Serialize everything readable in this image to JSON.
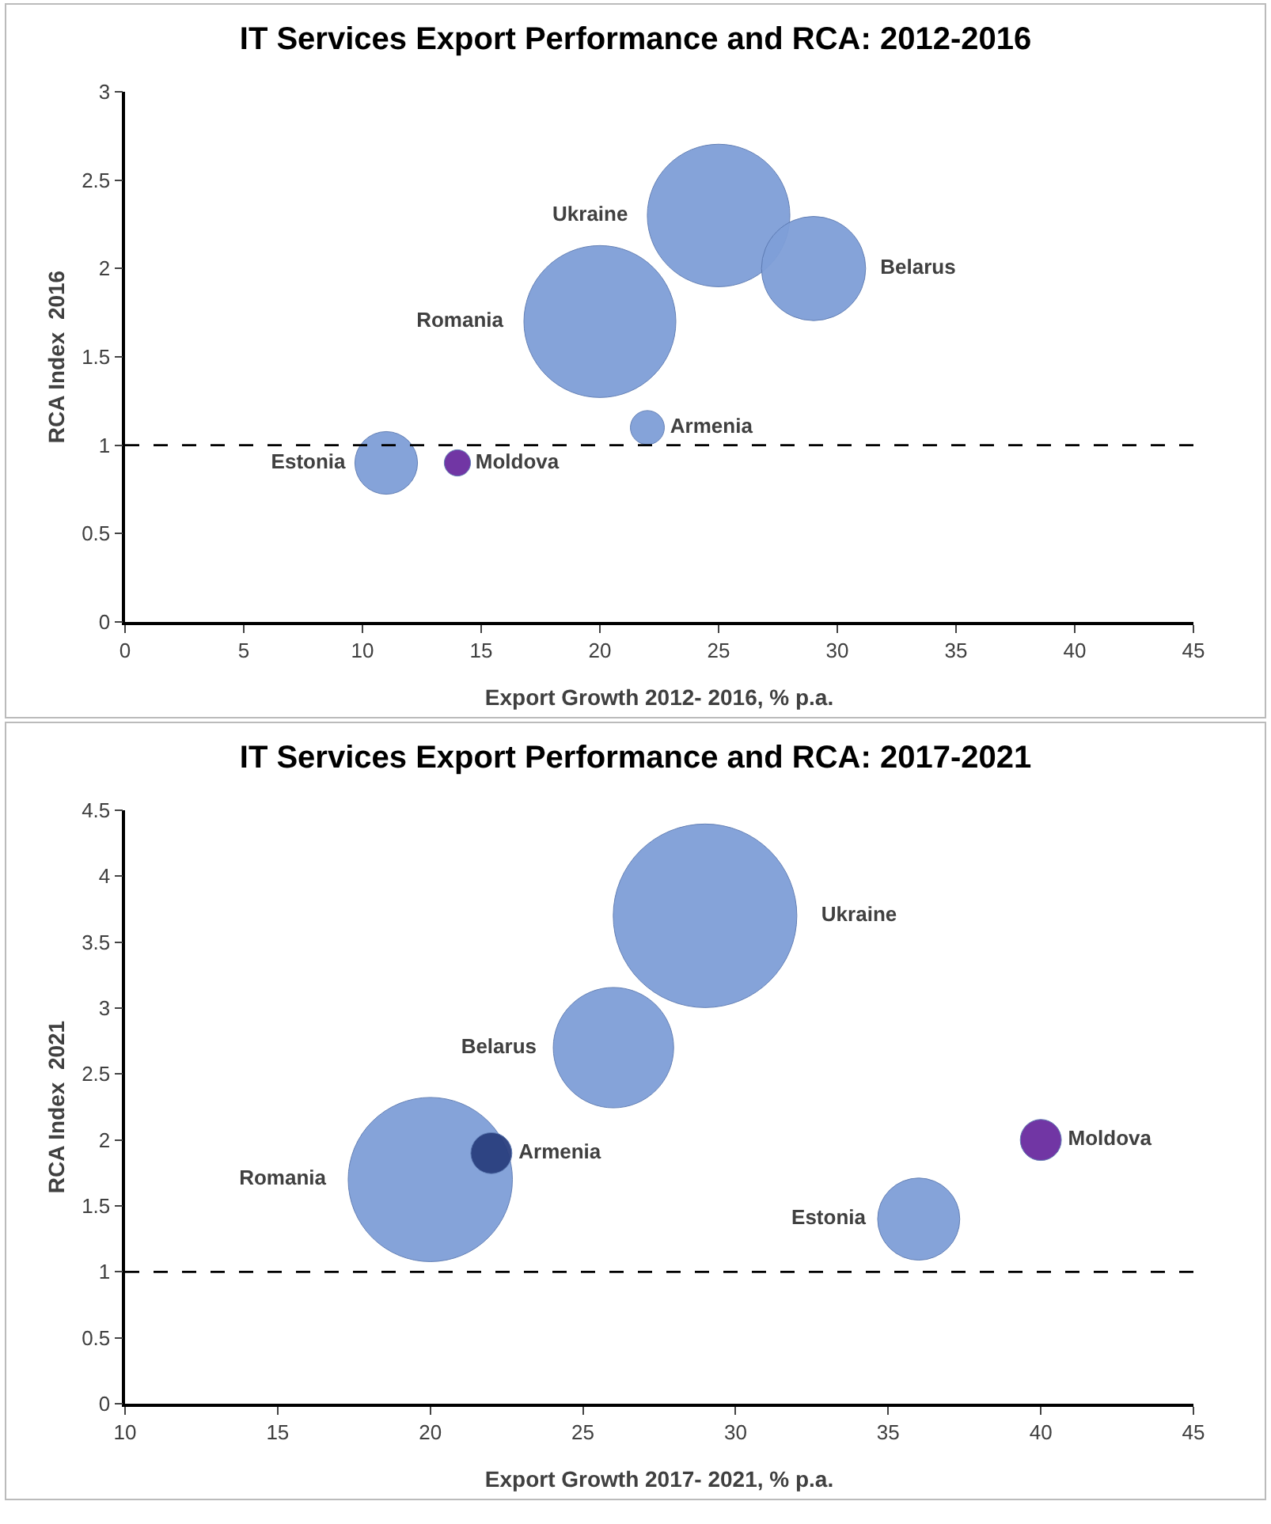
{
  "chart_data": [
    {
      "type": "bubble",
      "title": "IT Services Export Performance and RCA: 2012-2016",
      "xlabel": "Export Growth 2012- 2016, % p.a.",
      "ylabel": "RCA Index  2016",
      "xlim": [
        0,
        45
      ],
      "xticks": [
        0,
        5,
        10,
        15,
        20,
        25,
        30,
        35,
        40,
        45
      ],
      "ylim": [
        0,
        3
      ],
      "yticks": [
        0,
        0.5,
        1,
        1.5,
        2,
        2.5,
        3
      ],
      "grid": false,
      "legend": false,
      "marker": "circle",
      "ref_lines": [
        {
          "axis": "y",
          "value": 1,
          "line_style": "dashed",
          "color": "#000000"
        }
      ],
      "series": [
        {
          "name": "Estonia",
          "color": "#7f9fd8",
          "x": [
            11
          ],
          "values": [
            0.9
          ],
          "sizes": [
            0.17
          ]
        },
        {
          "name": "Moldova",
          "color": "#6a2ca0",
          "x": [
            14
          ],
          "values": [
            0.9
          ],
          "sizes": [
            0.03
          ]
        },
        {
          "name": "Romania",
          "color": "#7f9fd8",
          "x": [
            20
          ],
          "values": [
            1.7
          ],
          "sizes": [
            1
          ]
        },
        {
          "name": "Armenia",
          "color": "#7f9fd8",
          "x": [
            22
          ],
          "values": [
            1.1
          ],
          "sizes": [
            0.05
          ]
        },
        {
          "name": "Ukraine",
          "color": "#7f9fd8",
          "x": [
            25
          ],
          "values": [
            2.3
          ],
          "sizes": [
            0.88
          ]
        },
        {
          "name": "Belarus",
          "color": "#7f9fd8",
          "x": [
            29
          ],
          "values": [
            2.0
          ],
          "sizes": [
            0.47
          ]
        }
      ]
    },
    {
      "type": "bubble",
      "title": "IT Services Export Performance and RCA: 2017-2021",
      "xlabel": "Export Growth 2017- 2021, % p.a.",
      "ylabel": "RCA Index  2021",
      "xlim": [
        10,
        45
      ],
      "xticks": [
        10,
        15,
        20,
        25,
        30,
        35,
        40,
        45
      ],
      "ylim": [
        0,
        4.5
      ],
      "yticks": [
        0,
        0.5,
        1,
        1.5,
        2,
        2.5,
        3,
        3.5,
        4,
        4.5
      ],
      "grid": false,
      "legend": false,
      "marker": "circle",
      "ref_lines": [
        {
          "axis": "y",
          "value": 1,
          "line_style": "dashed",
          "color": "#000000"
        }
      ],
      "series": [
        {
          "name": "Romania",
          "color": "#7f9fd8",
          "x": [
            20
          ],
          "values": [
            1.7
          ],
          "sizes": [
            0.8
          ]
        },
        {
          "name": "Armenia",
          "color": "#2a3f7f",
          "x": [
            22
          ],
          "values": [
            1.9
          ],
          "sizes": [
            0.05
          ]
        },
        {
          "name": "Belarus",
          "color": "#7f9fd8",
          "x": [
            26
          ],
          "values": [
            2.7
          ],
          "sizes": [
            0.43
          ]
        },
        {
          "name": "Ukraine",
          "color": "#7f9fd8",
          "x": [
            29
          ],
          "values": [
            3.7
          ],
          "sizes": [
            1
          ]
        },
        {
          "name": "Estonia",
          "color": "#7f9fd8",
          "x": [
            36
          ],
          "values": [
            1.4
          ],
          "sizes": [
            0.2
          ]
        },
        {
          "name": "Moldova",
          "color": "#6a2ca0",
          "x": [
            40
          ],
          "values": [
            2.0
          ],
          "sizes": [
            0.05
          ]
        }
      ]
    }
  ]
}
